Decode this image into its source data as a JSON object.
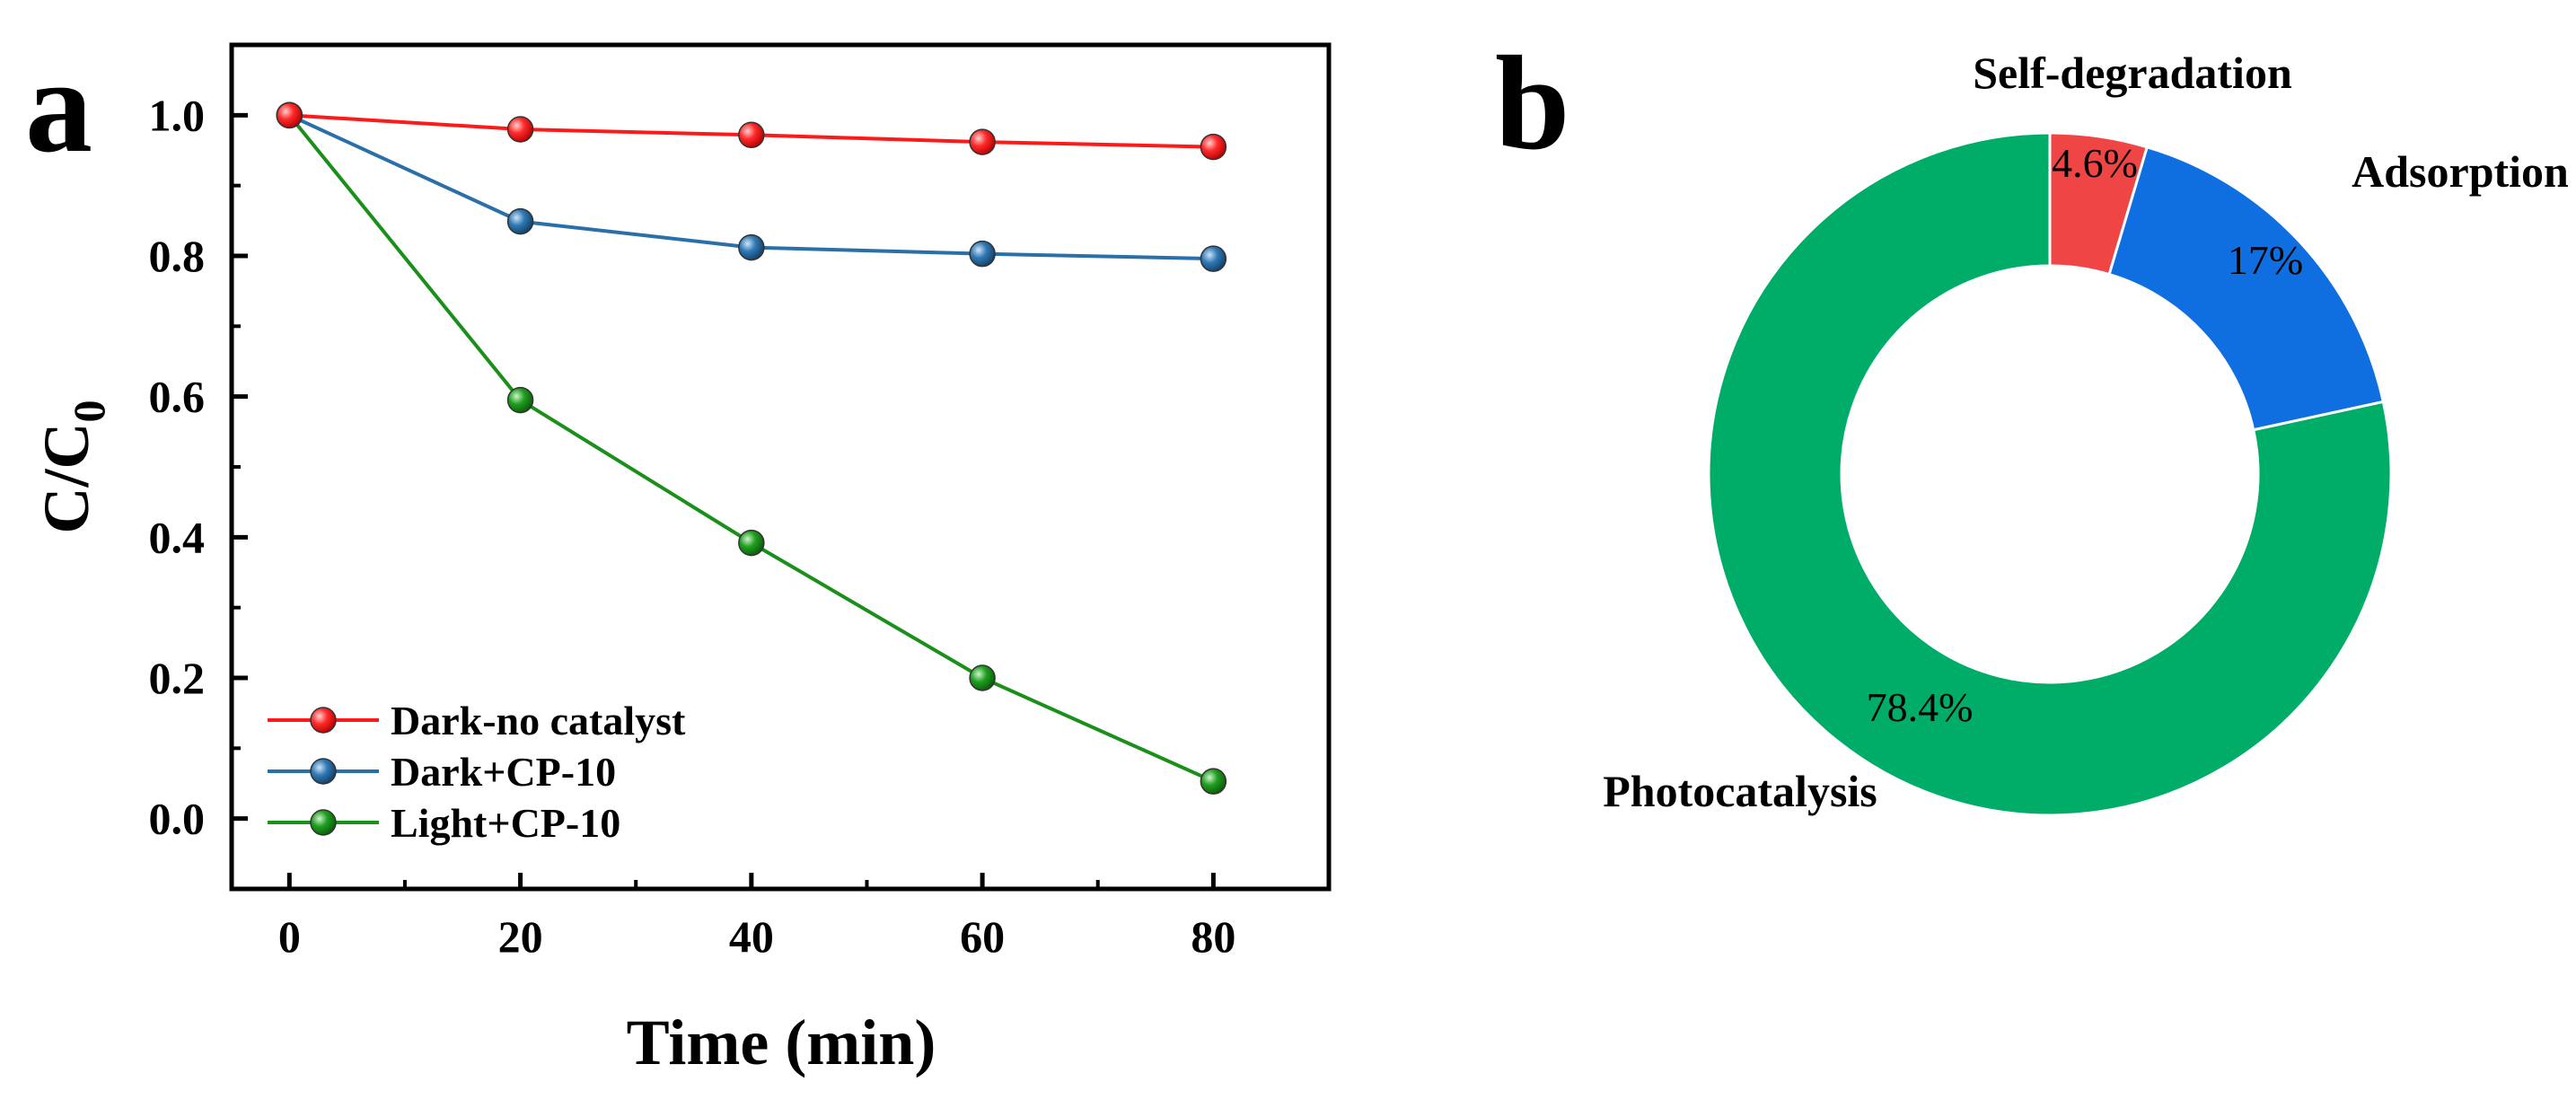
{
  "panels": {
    "a_label": "a",
    "b_label": "b"
  },
  "chart_data": [
    {
      "type": "line",
      "panel": "a",
      "title": "",
      "xlabel": "Time (min)",
      "ylabel_main": "C/C",
      "ylabel_sub": "0",
      "xlim": [
        -5,
        90
      ],
      "ylim": [
        -0.1,
        1.1
      ],
      "xticks": [
        0,
        20,
        40,
        60,
        80
      ],
      "yticks": [
        0.0,
        0.2,
        0.4,
        0.6,
        0.8,
        1.0
      ],
      "xtick_labels": [
        "0",
        "20",
        "40",
        "60",
        "80"
      ],
      "ytick_labels": [
        "0.0",
        "0.2",
        "0.4",
        "0.6",
        "0.8",
        "1.0"
      ],
      "x": [
        0,
        20,
        40,
        60,
        80
      ],
      "legend_position": "bottom-left",
      "series": [
        {
          "name": "Dark-no catalyst",
          "color": "#ff1a1a",
          "values": [
            1.0,
            0.98,
            0.972,
            0.962,
            0.955
          ]
        },
        {
          "name": "Dark+CP-10",
          "color": "#2a6fa8",
          "values": [
            1.0,
            0.849,
            0.812,
            0.803,
            0.796
          ]
        },
        {
          "name": "Light+CP-10",
          "color": "#1a8f1a",
          "values": [
            1.0,
            0.595,
            0.392,
            0.2,
            0.053
          ]
        }
      ]
    },
    {
      "type": "pie",
      "style": "donut",
      "panel": "b",
      "slices": [
        {
          "label": "Self-degradation",
          "value": 4.6,
          "text": "4.6%",
          "color": "#f04545"
        },
        {
          "label": "Adsorption",
          "value": 17,
          "text": "17%",
          "color": "#0f6fe0"
        },
        {
          "label": "Photocatalysis",
          "value": 78.4,
          "text": "78.4%",
          "color": "#00ad68"
        }
      ]
    }
  ]
}
